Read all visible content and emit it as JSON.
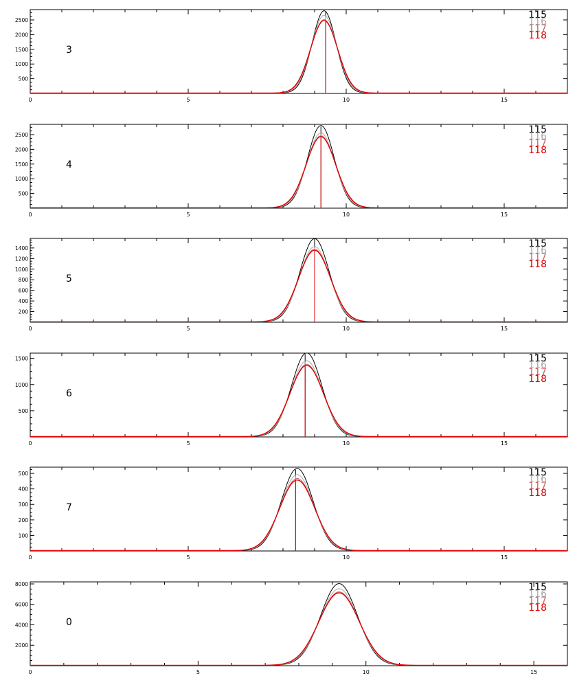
{
  "legend": {
    "position": "top-right",
    "entries": [
      {
        "label": "115",
        "color": "#000000"
      },
      {
        "label": "116",
        "color": "#aaaaaa"
      },
      {
        "label": "117",
        "color": "#cc6666"
      },
      {
        "label": "118",
        "color": "#dd0000"
      }
    ]
  },
  "chart_data": [
    {
      "type": "line",
      "panel_label": "3",
      "xlim": [
        0,
        17
      ],
      "ylim": [
        0,
        2850
      ],
      "x_ticks": [
        0,
        5,
        10,
        15
      ],
      "y_ticks": [
        500,
        1000,
        1500,
        2000,
        2500
      ],
      "series": [
        {
          "name": "115",
          "color": "#000000",
          "peak_x": 9.3,
          "peak_y": 2800,
          "sigma": 0.38,
          "marker_x": 9.35
        },
        {
          "name": "116",
          "color": "#aaaaaa",
          "peak_x": 9.3,
          "peak_y": 2650,
          "sigma": 0.4,
          "marker_x": 9.35
        },
        {
          "name": "117",
          "color": "#cc6666",
          "peak_x": 9.3,
          "peak_y": 2500,
          "sigma": 0.42,
          "marker_x": 9.35
        },
        {
          "name": "118",
          "color": "#dd0000",
          "peak_x": 9.3,
          "peak_y": 2470,
          "sigma": 0.43,
          "marker_x": 9.35
        }
      ]
    },
    {
      "type": "line",
      "panel_label": "4",
      "xlim": [
        0,
        17
      ],
      "ylim": [
        0,
        2850
      ],
      "x_ticks": [
        0,
        5,
        10,
        15
      ],
      "y_ticks": [
        500,
        1000,
        1500,
        2000,
        2500
      ],
      "series": [
        {
          "name": "115",
          "color": "#000000",
          "peak_x": 9.2,
          "peak_y": 2800,
          "sigma": 0.42,
          "marker_x": 9.2
        },
        {
          "name": "116",
          "color": "#aaaaaa",
          "peak_x": 9.2,
          "peak_y": 2550,
          "sigma": 0.44,
          "marker_x": 9.2
        },
        {
          "name": "117",
          "color": "#cc6666",
          "peak_x": 9.2,
          "peak_y": 2450,
          "sigma": 0.46,
          "marker_x": 9.2
        },
        {
          "name": "118",
          "color": "#dd0000",
          "peak_x": 9.2,
          "peak_y": 2420,
          "sigma": 0.47,
          "marker_x": 9.2
        }
      ]
    },
    {
      "type": "line",
      "panel_label": "5",
      "xlim": [
        0,
        17
      ],
      "ylim": [
        0,
        1580
      ],
      "x_ticks": [
        0,
        5,
        10,
        15
      ],
      "y_ticks": [
        200,
        400,
        600,
        800,
        1000,
        1200,
        1400
      ],
      "series": [
        {
          "name": "115",
          "color": "#000000",
          "peak_x": 9.0,
          "peak_y": 1570,
          "sigma": 0.46,
          "marker_x": 9.0
        },
        {
          "name": "116",
          "color": "#aaaaaa",
          "peak_x": 9.0,
          "peak_y": 1420,
          "sigma": 0.48,
          "marker_x": 9.0
        },
        {
          "name": "117",
          "color": "#cc6666",
          "peak_x": 9.0,
          "peak_y": 1370,
          "sigma": 0.5,
          "marker_x": 9.0
        },
        {
          "name": "118",
          "color": "#dd0000",
          "peak_x": 9.0,
          "peak_y": 1350,
          "sigma": 0.51,
          "marker_x": 9.0
        }
      ]
    },
    {
      "type": "line",
      "panel_label": "6",
      "xlim": [
        0,
        17
      ],
      "ylim": [
        0,
        1600
      ],
      "x_ticks": [
        0,
        5,
        10,
        15
      ],
      "y_ticks": [
        500,
        1000,
        1500
      ],
      "series": [
        {
          "name": "115",
          "color": "#000000",
          "peak_x": 8.75,
          "peak_y": 1600,
          "sigma": 0.48,
          "marker_x": 8.7
        },
        {
          "name": "116",
          "color": "#aaaaaa",
          "peak_x": 8.75,
          "peak_y": 1450,
          "sigma": 0.5,
          "marker_x": 8.7
        },
        {
          "name": "117",
          "color": "#cc6666",
          "peak_x": 8.75,
          "peak_y": 1380,
          "sigma": 0.52,
          "marker_x": 8.7
        },
        {
          "name": "118",
          "color": "#dd0000",
          "peak_x": 8.75,
          "peak_y": 1360,
          "sigma": 0.53,
          "marker_x": 8.7
        }
      ]
    },
    {
      "type": "line",
      "panel_label": "7",
      "xlim": [
        0,
        17
      ],
      "ylim": [
        0,
        540
      ],
      "x_ticks": [
        0,
        5,
        10,
        15
      ],
      "y_ticks": [
        100,
        200,
        300,
        400,
        500
      ],
      "series": [
        {
          "name": "115",
          "color": "#000000",
          "peak_x": 8.45,
          "peak_y": 530,
          "sigma": 0.5,
          "marker_x": 8.4
        },
        {
          "name": "116",
          "color": "#aaaaaa",
          "peak_x": 8.45,
          "peak_y": 490,
          "sigma": 0.52,
          "marker_x": 8.4
        },
        {
          "name": "117",
          "color": "#cc6666",
          "peak_x": 8.45,
          "peak_y": 465,
          "sigma": 0.54,
          "marker_x": 8.4
        },
        {
          "name": "118",
          "color": "#dd0000",
          "peak_x": 8.45,
          "peak_y": 455,
          "sigma": 0.55,
          "marker_x": 8.4
        }
      ]
    },
    {
      "type": "line",
      "panel_label": "0",
      "xlim": [
        0,
        16
      ],
      "ylim": [
        0,
        8200
      ],
      "x_ticks": [
        0,
        5,
        10,
        15
      ],
      "y_ticks": [
        2000,
        4000,
        6000,
        8000
      ],
      "series": [
        {
          "name": "115",
          "color": "#000000",
          "peak_x": 9.2,
          "peak_y": 8000,
          "sigma": 0.55,
          "marker_x": null
        },
        {
          "name": "116",
          "color": "#aaaaaa",
          "peak_x": 9.2,
          "peak_y": 7500,
          "sigma": 0.57,
          "marker_x": null
        },
        {
          "name": "117",
          "color": "#cc6666",
          "peak_x": 9.2,
          "peak_y": 7200,
          "sigma": 0.59,
          "marker_x": null
        },
        {
          "name": "118",
          "color": "#dd0000",
          "peak_x": 9.2,
          "peak_y": 7100,
          "sigma": 0.6,
          "marker_x": null
        }
      ]
    }
  ]
}
